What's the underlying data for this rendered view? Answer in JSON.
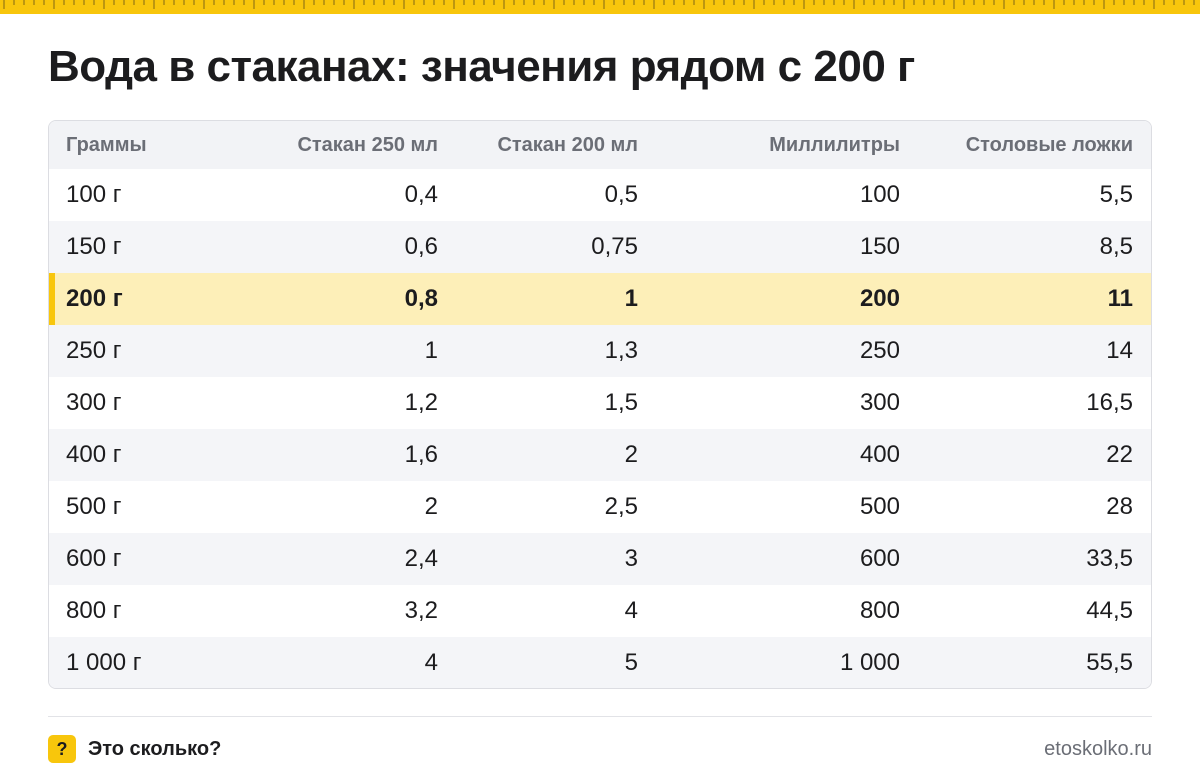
{
  "header": {
    "title": "Вода в стаканах: значения рядом с 200 г",
    "accent_color": "#f8c60c"
  },
  "table": {
    "columns": [
      "Граммы",
      "Стакан 250 мл",
      "Стакан 200 мл",
      "Миллилитры",
      "Столовые ложки"
    ],
    "highlight_row": 2,
    "rows": [
      [
        "100 г",
        "0,4",
        "0,5",
        "100",
        "5,5"
      ],
      [
        "150 г",
        "0,6",
        "0,75",
        "150",
        "8,5"
      ],
      [
        "200 г",
        "0,8",
        "1",
        "200",
        "11"
      ],
      [
        "250 г",
        "1",
        "1,3",
        "250",
        "14"
      ],
      [
        "300 г",
        "1,2",
        "1,5",
        "300",
        "16,5"
      ],
      [
        "400 г",
        "1,6",
        "2",
        "400",
        "22"
      ],
      [
        "500 г",
        "2",
        "2,5",
        "500",
        "28"
      ],
      [
        "600 г",
        "2,4",
        "3",
        "600",
        "33,5"
      ],
      [
        "800 г",
        "3,2",
        "4",
        "800",
        "44,5"
      ],
      [
        "1 000 г",
        "4",
        "5",
        "1 000",
        "55,5"
      ]
    ]
  },
  "footer": {
    "badge_text": "?",
    "brand_label": "Это сколько?",
    "site_url": "etoskolko.ru"
  }
}
